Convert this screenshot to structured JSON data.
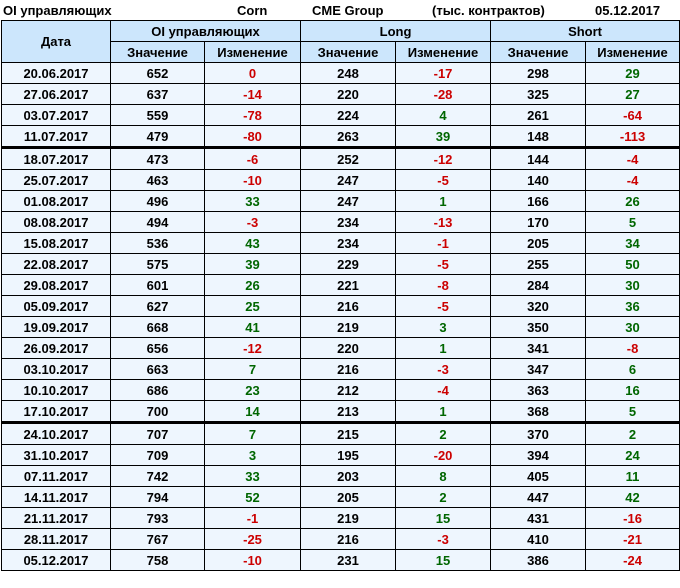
{
  "title": {
    "left": "OI управляющих",
    "commodity": "Corn",
    "exchange": "CME Group",
    "units": "(тыс. контрактов)",
    "date": "05.12.2017"
  },
  "colors": {
    "negative": "#cc0000",
    "positive": "#006600",
    "header_bg": "#cce6fc",
    "cell_bg": "#eef6fe"
  },
  "table": {
    "date_header": "Дата",
    "groups": [
      "OI управляющих",
      "Long",
      "Short"
    ],
    "subheaders": [
      "Значение",
      "Изменение",
      "Значение",
      "Изменение",
      "Значение",
      "Изменение"
    ],
    "rows": [
      [
        "20.06.2017",
        "652",
        "0",
        "248",
        "-17",
        "298",
        "29"
      ],
      [
        "27.06.2017",
        "637",
        "-14",
        "220",
        "-28",
        "325",
        "27"
      ],
      [
        "03.07.2017",
        "559",
        "-78",
        "224",
        "4",
        "261",
        "-64"
      ],
      [
        "11.07.2017",
        "479",
        "-80",
        "263",
        "39",
        "148",
        "-113"
      ],
      [
        "18.07.2017",
        "473",
        "-6",
        "252",
        "-12",
        "144",
        "-4"
      ],
      [
        "25.07.2017",
        "463",
        "-10",
        "247",
        "-5",
        "140",
        "-4"
      ],
      [
        "01.08.2017",
        "496",
        "33",
        "247",
        "1",
        "166",
        "26"
      ],
      [
        "08.08.2017",
        "494",
        "-3",
        "234",
        "-13",
        "170",
        "5"
      ],
      [
        "15.08.2017",
        "536",
        "43",
        "234",
        "-1",
        "205",
        "34"
      ],
      [
        "22.08.2017",
        "575",
        "39",
        "229",
        "-5",
        "255",
        "50"
      ],
      [
        "29.08.2017",
        "601",
        "26",
        "221",
        "-8",
        "284",
        "30"
      ],
      [
        "05.09.2017",
        "627",
        "25",
        "216",
        "-5",
        "320",
        "36"
      ],
      [
        "19.09.2017",
        "668",
        "41",
        "219",
        "3",
        "350",
        "30"
      ],
      [
        "26.09.2017",
        "656",
        "-12",
        "220",
        "1",
        "341",
        "-8"
      ],
      [
        "03.10.2017",
        "663",
        "7",
        "216",
        "-3",
        "347",
        "6"
      ],
      [
        "10.10.2017",
        "686",
        "23",
        "212",
        "-4",
        "363",
        "16"
      ],
      [
        "17.10.2017",
        "700",
        "14",
        "213",
        "1",
        "368",
        "5"
      ],
      [
        "24.10.2017",
        "707",
        "7",
        "215",
        "2",
        "370",
        "2"
      ],
      [
        "31.10.2017",
        "709",
        "3",
        "195",
        "-20",
        "394",
        "24"
      ],
      [
        "07.11.2017",
        "742",
        "33",
        "203",
        "8",
        "405",
        "11"
      ],
      [
        "14.11.2017",
        "794",
        "52",
        "205",
        "2",
        "447",
        "42"
      ],
      [
        "21.11.2017",
        "793",
        "-1",
        "219",
        "15",
        "431",
        "-16"
      ],
      [
        "28.11.2017",
        "767",
        "-25",
        "216",
        "-3",
        "410",
        "-21"
      ],
      [
        "05.12.2017",
        "758",
        "-10",
        "231",
        "15",
        "386",
        "-24"
      ]
    ],
    "separator_after": [
      "11.07.2017",
      "17.10.2017"
    ]
  }
}
